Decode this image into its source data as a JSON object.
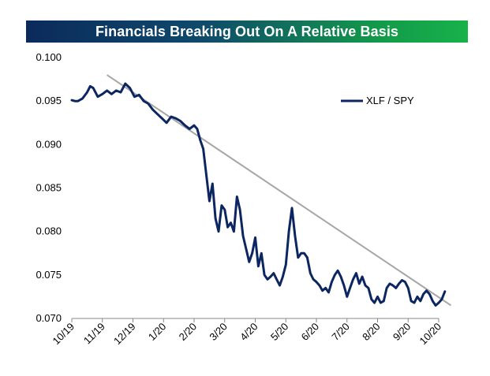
{
  "chart_data": {
    "type": "line",
    "title": "Financials Breaking Out On A Relative Basis",
    "xlabel": "",
    "ylabel": "",
    "ylim": [
      0.07,
      0.1
    ],
    "y_ticks": [
      "0.100",
      "0.095",
      "0.090",
      "0.085",
      "0.080",
      "0.075",
      "0.070"
    ],
    "x_ticks": [
      "10/19",
      "11/19",
      "12/19",
      "1/20",
      "2/20",
      "3/20",
      "4/20",
      "5/20",
      "6/20",
      "7/20",
      "8/20",
      "9/20",
      "10/20"
    ],
    "grid": false,
    "legend_position": "top-right",
    "colors": {
      "series": "#0b2660",
      "trendline": "#a6a6a6",
      "title_start": "#0b2a5c",
      "title_end": "#17b24a"
    },
    "series": [
      {
        "name": "XLF / SPY",
        "x": [
          0,
          0.1,
          0.2,
          0.35,
          0.5,
          0.6,
          0.7,
          0.85,
          1.0,
          1.15,
          1.3,
          1.45,
          1.6,
          1.75,
          1.9,
          2.05,
          2.2,
          2.35,
          2.5,
          2.65,
          2.8,
          2.95,
          3.1,
          3.25,
          3.4,
          3.55,
          3.7,
          3.85,
          4.0,
          4.1,
          4.2,
          4.3,
          4.4,
          4.5,
          4.6,
          4.7,
          4.8,
          4.9,
          5.0,
          5.1,
          5.2,
          5.3,
          5.4,
          5.5,
          5.6,
          5.7,
          5.8,
          5.9,
          6.0,
          6.1,
          6.2,
          6.3,
          6.4,
          6.5,
          6.6,
          6.7,
          6.8,
          6.9,
          7.0,
          7.1,
          7.2,
          7.3,
          7.4,
          7.5,
          7.6,
          7.7,
          7.8,
          7.9,
          8.0,
          8.1,
          8.2,
          8.3,
          8.4,
          8.5,
          8.6,
          8.7,
          8.8,
          8.9,
          9.0,
          9.1,
          9.2,
          9.3,
          9.4,
          9.5,
          9.6,
          9.7,
          9.8,
          9.9,
          10.0,
          10.1,
          10.2,
          10.3,
          10.4,
          10.5,
          10.6,
          10.7,
          10.8,
          10.9,
          11.0,
          11.1,
          11.2,
          11.3,
          11.4,
          11.5,
          11.6,
          11.7,
          11.8,
          11.9,
          12.0,
          12.1,
          12.2
        ],
        "values": [
          0.0951,
          0.095,
          0.095,
          0.0953,
          0.096,
          0.0967,
          0.0965,
          0.0955,
          0.0958,
          0.0962,
          0.0958,
          0.0962,
          0.096,
          0.097,
          0.0965,
          0.0955,
          0.0957,
          0.095,
          0.0947,
          0.094,
          0.0935,
          0.093,
          0.0925,
          0.0932,
          0.093,
          0.0927,
          0.0922,
          0.0918,
          0.0922,
          0.0918,
          0.0905,
          0.0895,
          0.0865,
          0.0835,
          0.0855,
          0.0815,
          0.08,
          0.083,
          0.0825,
          0.0805,
          0.081,
          0.08,
          0.084,
          0.0825,
          0.0795,
          0.078,
          0.0765,
          0.0775,
          0.0793,
          0.076,
          0.0775,
          0.075,
          0.0745,
          0.0748,
          0.0752,
          0.0745,
          0.0738,
          0.0748,
          0.0762,
          0.08,
          0.0827,
          0.0795,
          0.077,
          0.0775,
          0.0775,
          0.077,
          0.0752,
          0.0745,
          0.0742,
          0.0738,
          0.0732,
          0.0735,
          0.073,
          0.0742,
          0.075,
          0.0755,
          0.0748,
          0.0738,
          0.0725,
          0.0735,
          0.0745,
          0.0752,
          0.074,
          0.0748,
          0.0738,
          0.0735,
          0.0722,
          0.0718,
          0.0725,
          0.0718,
          0.072,
          0.0735,
          0.074,
          0.0738,
          0.0735,
          0.074,
          0.0744,
          0.0742,
          0.0735,
          0.072,
          0.0718,
          0.0725,
          0.072,
          0.0728,
          0.0732,
          0.0728,
          0.072,
          0.0715,
          0.0718,
          0.0722,
          0.0731
        ]
      }
    ],
    "trendline": {
      "x": [
        1.15,
        12.4
      ],
      "values": [
        0.098,
        0.0715
      ]
    }
  }
}
